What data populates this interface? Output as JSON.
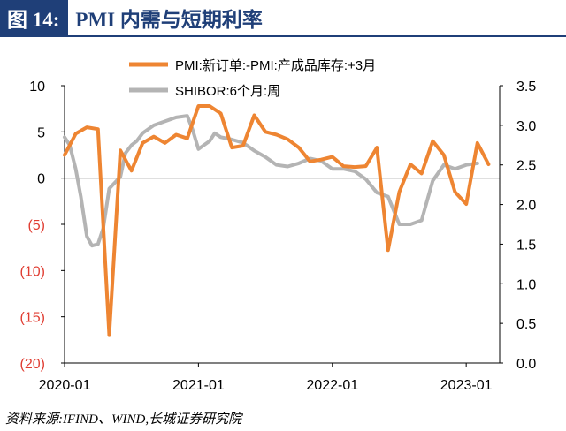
{
  "header": {
    "tag": "图 14:",
    "title": "PMI 内需与短期利率"
  },
  "footer": {
    "source": "资料来源:IFIND、WIND,长城证券研究院"
  },
  "colors": {
    "orange": "#ee8532",
    "gray": "#b4b4b4",
    "negative_label": "#e03c31",
    "axis": "#000000",
    "brand": "#1f3f78"
  },
  "chart_data": {
    "type": "line",
    "legend_position": "top",
    "grid": false,
    "x_tick_labels": [
      "2020-01",
      "2021-01",
      "2022-01",
      "2023-01"
    ],
    "left_axis": {
      "ylim": [
        -20,
        10
      ],
      "tick_labels": [
        "(20)",
        "(15)",
        "(10)",
        "(5)",
        "0",
        "5",
        "10"
      ]
    },
    "right_axis": {
      "ylim": [
        0.0,
        3.5
      ],
      "tick_labels": [
        "0.0",
        "0.5",
        "1.0",
        "1.5",
        "2.0",
        "2.5",
        "3.0",
        "3.5"
      ]
    },
    "series": [
      {
        "name": "PMI:新订单:-PMI:产成品库存:+3月",
        "axis": "left",
        "color": "#ee8532",
        "x": [
          "2020-01",
          "2020-02",
          "2020-03",
          "2020-04",
          "2020-05",
          "2020-06",
          "2020-07",
          "2020-08",
          "2020-09",
          "2020-10",
          "2020-11",
          "2020-12",
          "2021-01",
          "2021-02",
          "2021-03",
          "2021-04",
          "2021-05",
          "2021-06",
          "2021-07",
          "2021-08",
          "2021-09",
          "2021-10",
          "2021-11",
          "2021-12",
          "2022-01",
          "2022-02",
          "2022-03",
          "2022-04",
          "2022-05",
          "2022-06",
          "2022-07",
          "2022-08",
          "2022-09",
          "2022-10",
          "2022-11",
          "2022-12",
          "2023-01",
          "2023-02",
          "2023-03"
        ],
        "values": [
          2.5,
          4.8,
          5.5,
          5.3,
          -17.0,
          3.0,
          0.8,
          3.8,
          4.5,
          3.8,
          4.7,
          4.3,
          7.8,
          7.8,
          7.0,
          3.3,
          3.5,
          6.8,
          5.0,
          4.7,
          4.2,
          3.3,
          1.8,
          2.0,
          2.3,
          1.3,
          1.2,
          1.3,
          3.3,
          -7.8,
          -1.5,
          1.5,
          0.5,
          4.0,
          2.5,
          -1.5,
          -2.8,
          3.8,
          1.5
        ]
      },
      {
        "name": "SHIBOR:6个月:周",
        "axis": "right",
        "color": "#b4b4b4",
        "x": [
          "2020-01",
          "2020-01-15",
          "2020-02",
          "2020-02-15",
          "2020-03",
          "2020-03-15",
          "2020-04",
          "2020-04-15",
          "2020-05",
          "2020-06",
          "2020-06-15",
          "2020-07",
          "2020-07-15",
          "2020-08",
          "2020-09",
          "2020-10",
          "2020-11",
          "2020-12",
          "2020-12-15",
          "2021-01",
          "2021-02",
          "2021-02-15",
          "2021-03",
          "2021-04",
          "2021-05",
          "2021-06",
          "2021-07",
          "2021-08",
          "2021-09",
          "2021-10",
          "2021-11",
          "2021-12",
          "2022-01",
          "2022-02",
          "2022-03",
          "2022-04",
          "2022-05",
          "2022-06",
          "2022-07",
          "2022-08",
          "2022-09",
          "2022-10",
          "2022-11",
          "2022-12",
          "2023-01",
          "2023-02"
        ],
        "values": [
          2.85,
          2.75,
          2.45,
          2.1,
          1.6,
          1.48,
          1.5,
          1.7,
          2.2,
          2.35,
          2.65,
          2.75,
          2.8,
          2.9,
          3.0,
          3.05,
          3.1,
          3.12,
          2.95,
          2.7,
          2.8,
          2.9,
          2.85,
          2.82,
          2.78,
          2.68,
          2.6,
          2.5,
          2.48,
          2.52,
          2.58,
          2.55,
          2.45,
          2.45,
          2.42,
          2.32,
          2.15,
          2.1,
          1.75,
          1.75,
          1.8,
          2.3,
          2.5,
          2.45,
          2.5,
          2.52
        ]
      }
    ]
  }
}
